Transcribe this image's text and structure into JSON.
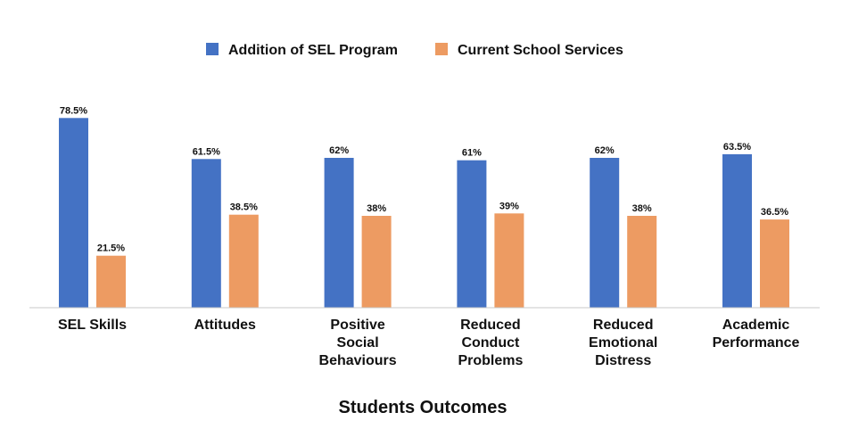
{
  "chart_data": {
    "type": "bar",
    "title": "",
    "xlabel": "Students Outcomes",
    "ylabel": "",
    "ylim": [
      0,
      80
    ],
    "grid": false,
    "legend_position": "top",
    "categories": [
      [
        "SEL Skills"
      ],
      [
        "Attitudes"
      ],
      [
        "Positive",
        "Social",
        "Behaviours"
      ],
      [
        "Reduced",
        "Conduct",
        "Problems"
      ],
      [
        "Reduced",
        "Emotional",
        "Distress"
      ],
      [
        "Academic",
        "Performance"
      ]
    ],
    "series": [
      {
        "name": "Addition of SEL Program",
        "color": "#4472C4",
        "values": [
          78.5,
          61.5,
          62,
          61,
          62,
          63.5
        ],
        "labels": [
          "78.5%",
          "61.5%",
          "62%",
          "61%",
          "62%",
          "63.5%"
        ]
      },
      {
        "name": "Current School Services",
        "color": "#ED9B62",
        "values": [
          21.5,
          38.5,
          38,
          39,
          38,
          36.5
        ],
        "labels": [
          "21.5%",
          "38.5%",
          "38%",
          "39%",
          "38%",
          "36.5%"
        ]
      }
    ]
  }
}
